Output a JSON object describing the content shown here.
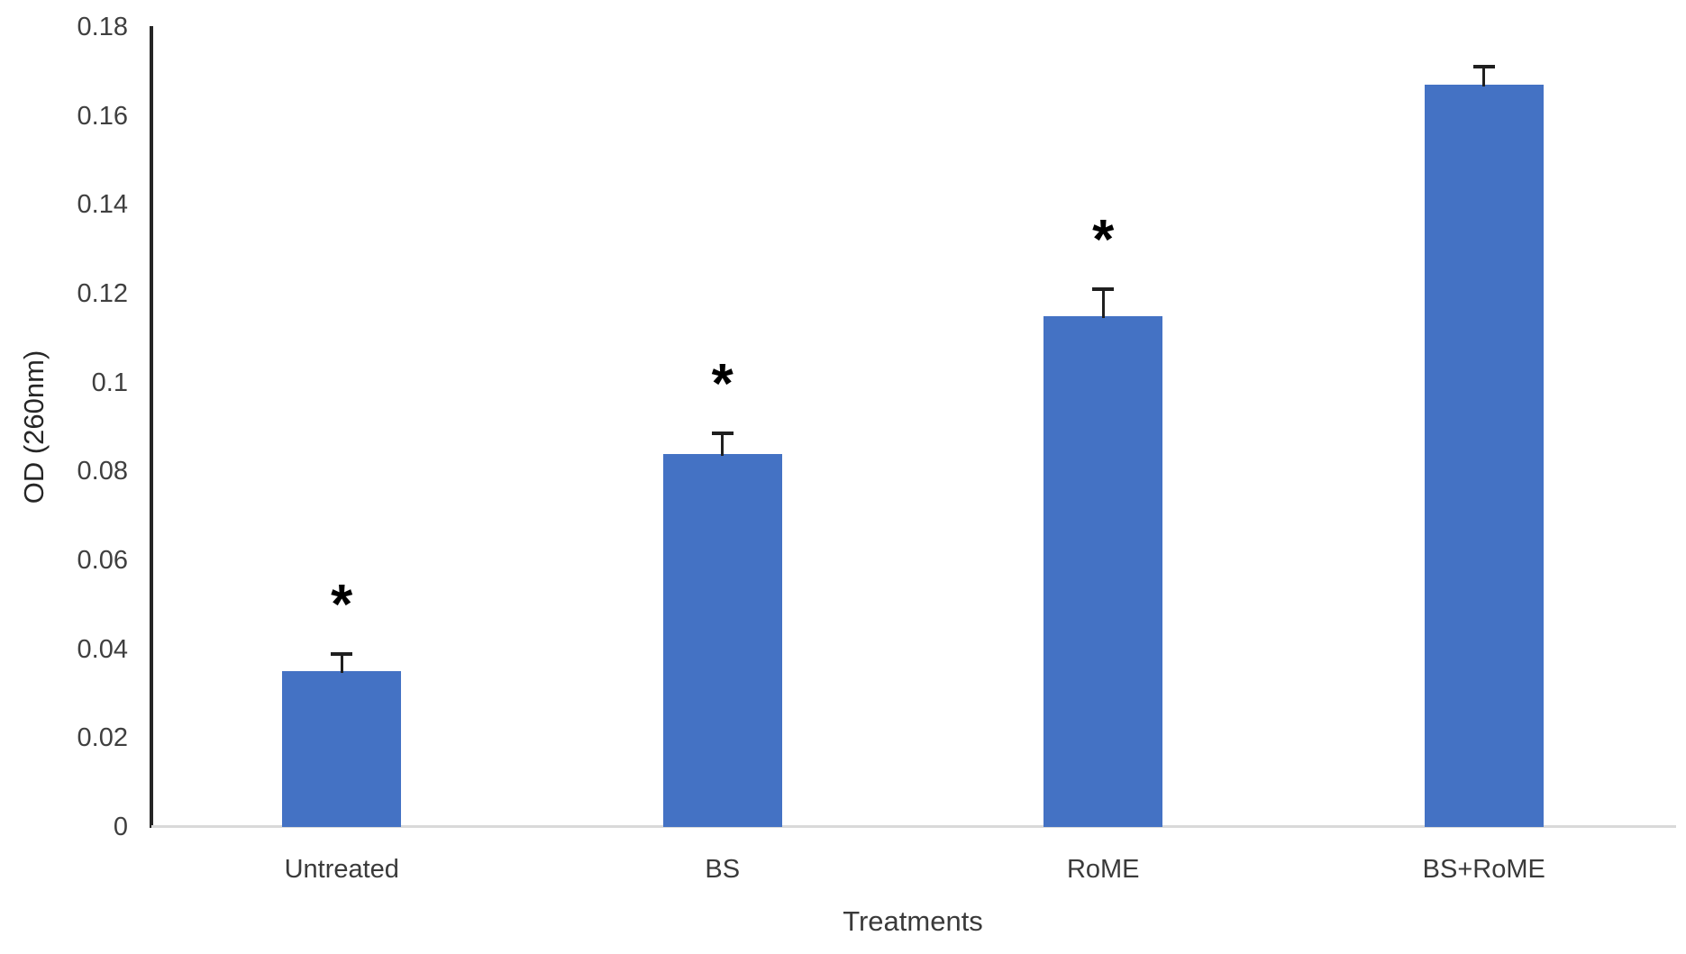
{
  "figure": {
    "background_color": "#ffffff",
    "bar_color": "#4472C4",
    "y_axis_line_color": "#262626",
    "x_axis_line_color": "#d9d9d9",
    "text_color": "#3f3f3f",
    "error_bar_color": "#1f1f1f",
    "asterisk_color": "#000000",
    "asterisk_symbol": "*"
  },
  "chart_data": {
    "type": "bar",
    "title": "",
    "xlabel": "Treatments",
    "ylabel": "OD (260nm)",
    "categories": [
      "Untreated",
      "BS",
      "RoME",
      "BS+RoME"
    ],
    "values": [
      0.035,
      0.084,
      0.115,
      0.167
    ],
    "error_bars": [
      0.004,
      0.0045,
      0.006,
      0.004
    ],
    "significance_asterisk": [
      true,
      true,
      true,
      false
    ],
    "ylim": [
      0,
      0.18
    ],
    "yticks": [
      "0",
      "0.02",
      "0.04",
      "0.06",
      "0.08",
      "0.1",
      "0.12",
      "0.14",
      "0.16",
      "0.18"
    ],
    "grid": false,
    "legend": false
  }
}
